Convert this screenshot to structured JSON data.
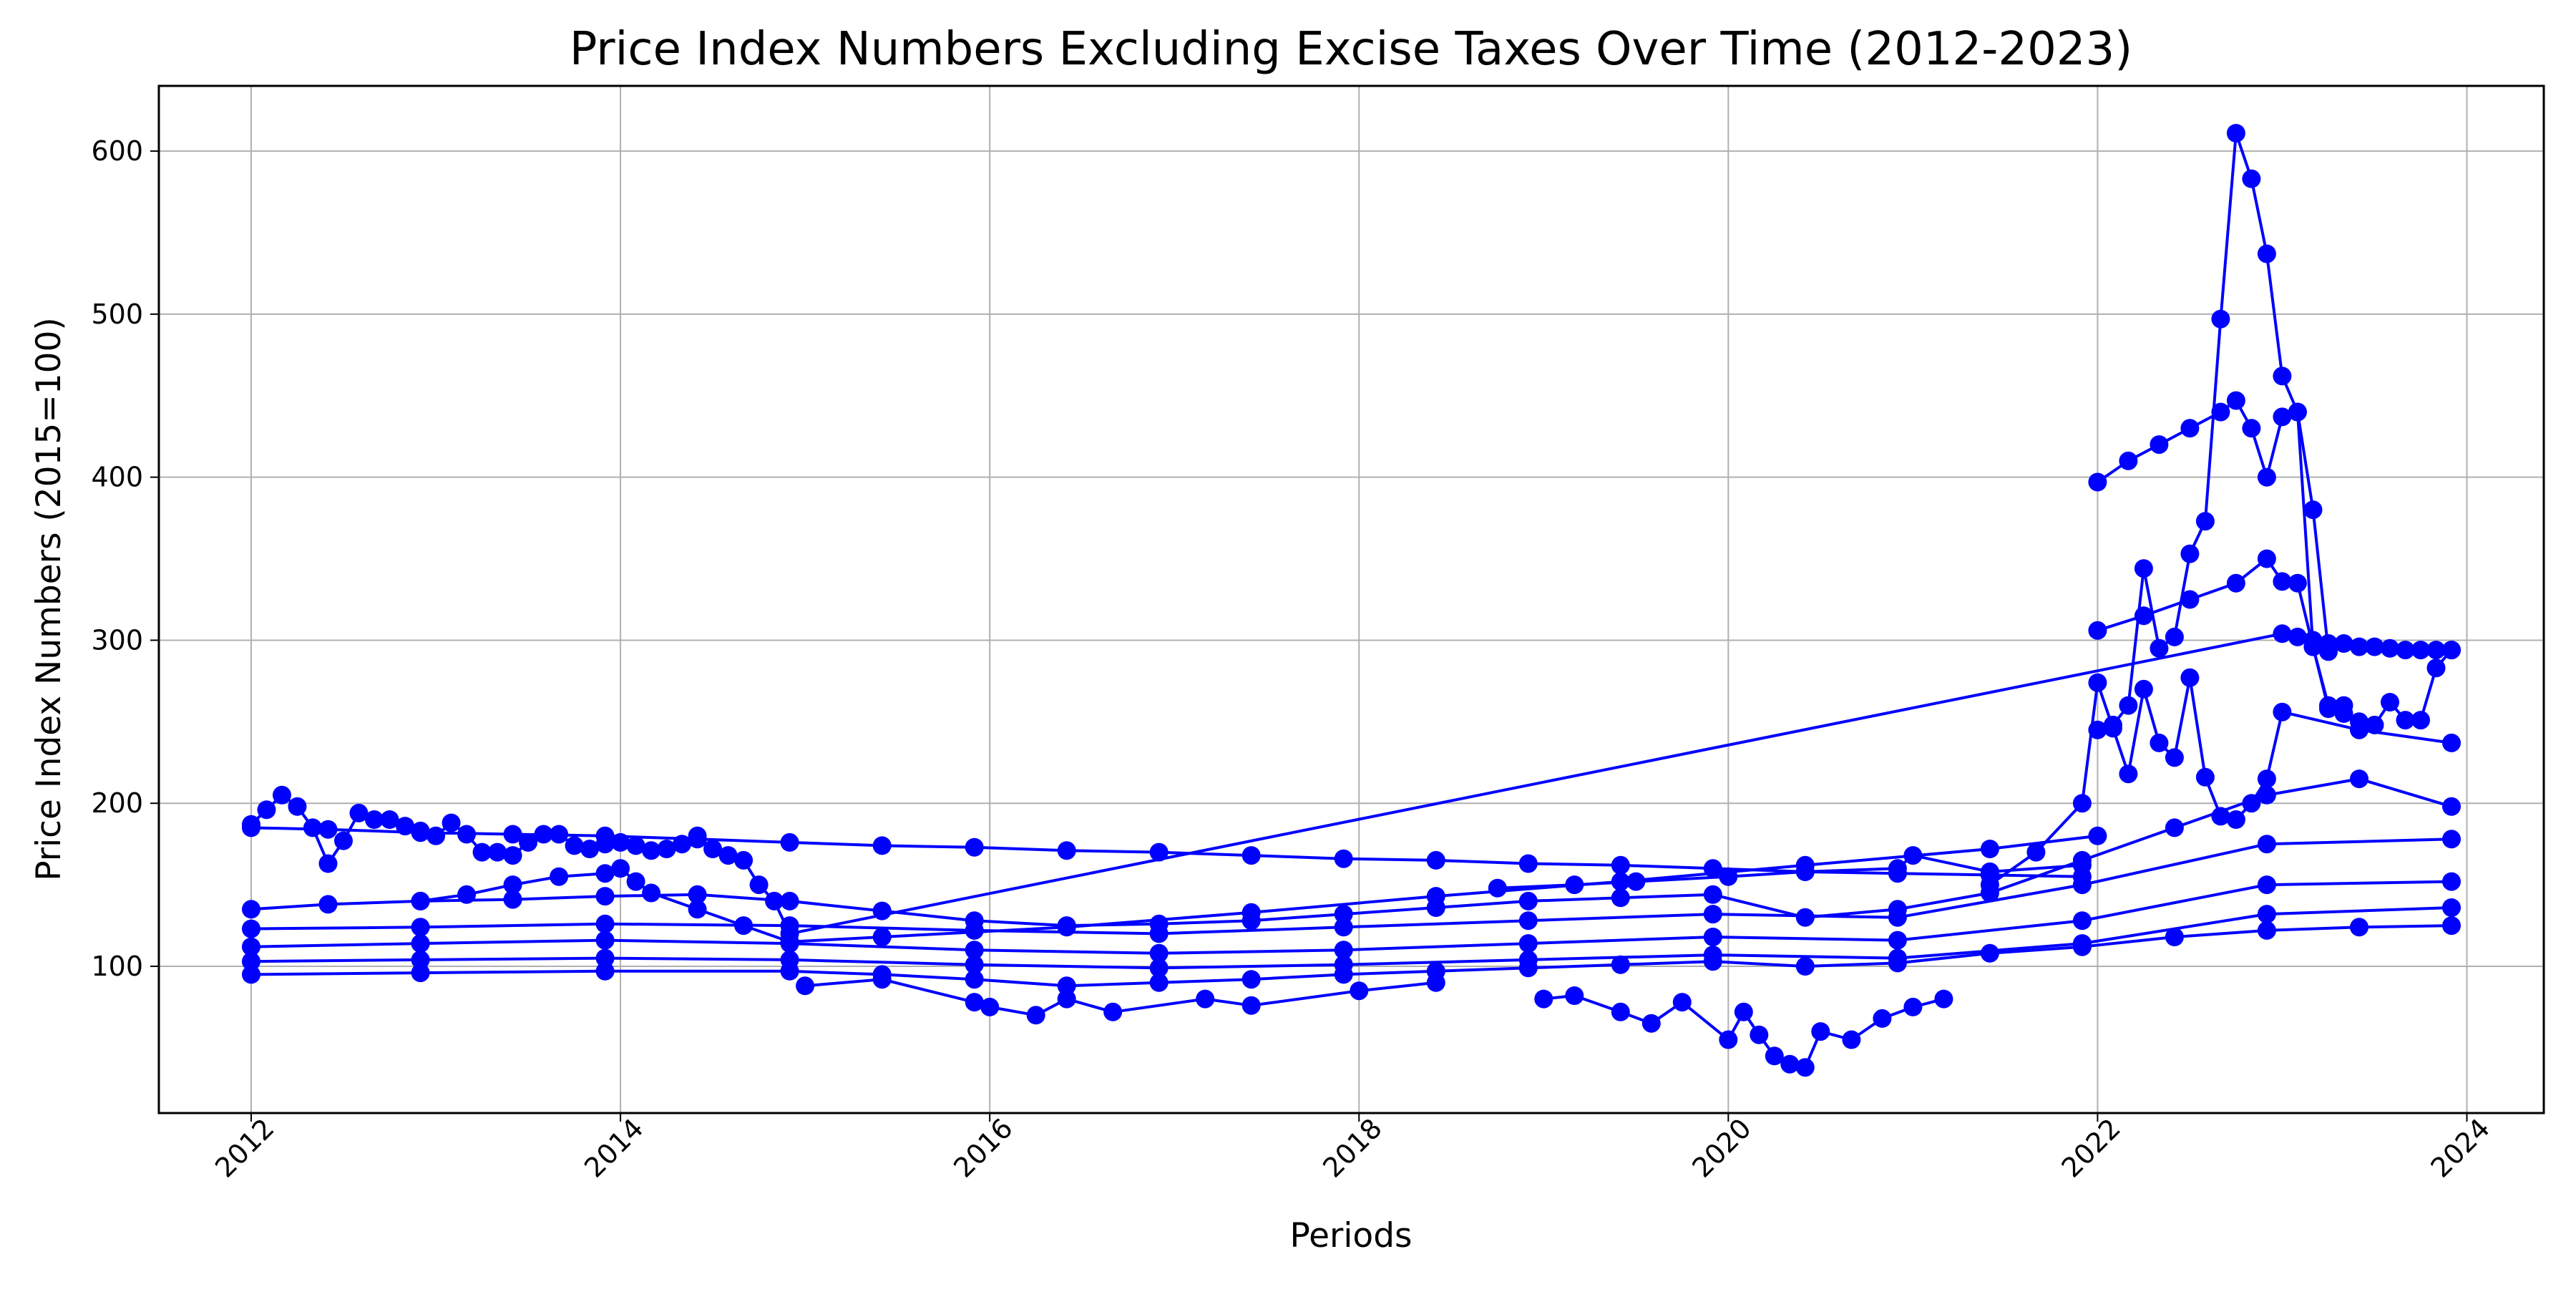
{
  "chart_data": {
    "type": "line",
    "title": "Price Index Numbers Excluding Excise Taxes Over Time (2012-2023)",
    "xlabel": "Periods",
    "ylabel": "Price Index Numbers (2015=100)",
    "x_ticks": [
      "2012",
      "2014",
      "2016",
      "2018",
      "2020",
      "2022",
      "2024"
    ],
    "y_ticks": [
      "100",
      "200",
      "300",
      "400",
      "500",
      "600"
    ],
    "xlim": [
      "2011-07",
      "2024-06"
    ],
    "ylim": [
      10,
      640
    ],
    "grid": true,
    "line_color": "#0000ff",
    "marker": "circle",
    "series": [
      {
        "x": [
          "2012-01",
          "2012-02",
          "2012-03",
          "2012-04",
          "2012-05",
          "2012-06",
          "2012-07",
          "2012-08",
          "2012-09",
          "2012-10",
          "2012-11",
          "2012-12",
          "2013-01",
          "2013-02",
          "2013-03",
          "2013-04",
          "2013-05",
          "2013-06",
          "2013-07",
          "2013-08",
          "2013-09",
          "2013-10",
          "2013-11",
          "2013-12",
          "2014-01",
          "2014-02",
          "2014-03",
          "2014-04",
          "2014-05",
          "2014-06",
          "2014-07",
          "2014-08",
          "2014-09",
          "2014-10",
          "2014-11",
          "2014-12",
          "2023-01",
          "2023-02",
          "2023-03",
          "2023-04",
          "2023-05",
          "2023-06",
          "2023-07",
          "2023-08",
          "2023-09",
          "2023-10",
          "2023-11",
          "2023-12"
        ],
        "y": [
          187,
          196,
          205,
          198,
          185,
          163,
          177,
          194,
          190,
          190,
          186,
          183,
          180,
          188,
          181,
          170,
          170,
          168,
          176,
          181,
          181,
          174,
          172,
          175,
          176,
          174,
          171,
          172,
          175,
          180,
          172,
          168,
          165,
          150,
          140,
          120,
          304,
          302,
          300,
          298,
          298,
          296,
          296,
          295,
          294,
          294,
          294,
          294
        ]
      },
      {
        "x": [
          "2012-01",
          "2012-06",
          "2012-12",
          "2013-06",
          "2013-12",
          "2014-06",
          "2014-12",
          "2015-06",
          "2015-12",
          "2016-06",
          "2016-12",
          "2017-06",
          "2017-12",
          "2018-06",
          "2018-12",
          "2019-06",
          "2019-12",
          "2020-06",
          "2020-12",
          "2021-06",
          "2021-12"
        ],
        "y": [
          185,
          184,
          182,
          181,
          180,
          178,
          176,
          174,
          173,
          171,
          170,
          168,
          166,
          165,
          163,
          162,
          160,
          158,
          157,
          156,
          155
        ]
      },
      {
        "x": [
          "2012-12",
          "2013-03",
          "2013-06",
          "2013-09",
          "2013-12",
          "2014-01",
          "2014-02",
          "2014-03",
          "2014-06",
          "2014-09",
          "2014-12",
          "2015-06",
          "2016-06",
          "2017-06",
          "2018-06",
          "2019-06",
          "2020-06",
          "2021-06",
          "2022-01"
        ],
        "y": [
          140,
          144,
          150,
          155,
          157,
          160,
          152,
          145,
          135,
          125,
          115,
          118,
          124,
          133,
          143,
          152,
          162,
          172,
          180
        ]
      },
      {
        "x": [
          "2022-01",
          "2022-03",
          "2022-05",
          "2022-07",
          "2022-09",
          "2022-10",
          "2022-11",
          "2022-12",
          "2023-01",
          "2023-02",
          "2023-03",
          "2023-04"
        ],
        "y": [
          397,
          410,
          420,
          430,
          440,
          447,
          430,
          400,
          437,
          440,
          380,
          293
        ]
      },
      {
        "x": [
          "2022-01",
          "2022-02",
          "2022-03",
          "2022-04",
          "2022-05",
          "2022-06",
          "2022-07",
          "2022-08",
          "2022-09",
          "2022-10",
          "2022-11",
          "2022-12",
          "2023-01",
          "2023-02",
          "2023-03",
          "2023-04",
          "2023-05"
        ],
        "y": [
          245,
          248,
          260,
          344,
          295,
          302,
          353,
          373,
          497,
          611,
          583,
          537,
          462,
          440,
          296,
          258,
          260
        ]
      },
      {
        "x": [
          "2022-01",
          "2022-04",
          "2022-07",
          "2022-10",
          "2022-12",
          "2023-01",
          "2023-02",
          "2023-03",
          "2023-04",
          "2023-05",
          "2023-06",
          "2023-07",
          "2023-08",
          "2023-09",
          "2023-10",
          "2023-11",
          "2023-12"
        ],
        "y": [
          306,
          315,
          325,
          335,
          350,
          336,
          335,
          296,
          260,
          255,
          250,
          248,
          262,
          251,
          251,
          283,
          294
        ]
      },
      {
        "x": [
          "2021-06",
          "2021-09",
          "2021-12",
          "2022-01",
          "2022-02",
          "2022-03",
          "2022-04",
          "2022-05",
          "2022-06",
          "2022-07",
          "2022-08",
          "2022-09",
          "2022-10",
          "2022-11",
          "2022-12",
          "2023-01",
          "2023-06",
          "2023-12"
        ],
        "y": [
          150,
          170,
          200,
          274,
          246,
          218,
          270,
          237,
          228,
          277,
          216,
          192,
          190,
          200,
          215,
          256,
          245,
          237
        ]
      },
      {
        "x": [
          "2012-01",
          "2012-06",
          "2012-12",
          "2013-06",
          "2013-12",
          "2014-06",
          "2014-12",
          "2015-06",
          "2015-12",
          "2016-06",
          "2016-12",
          "2017-06",
          "2017-12",
          "2018-06",
          "2018-12",
          "2019-06",
          "2019-12",
          "2020-06",
          "2020-12",
          "2021-06",
          "2021-12",
          "2022-06",
          "2022-12",
          "2023-06",
          "2023-12"
        ],
        "y": [
          135,
          138,
          140,
          141,
          143,
          144,
          140,
          134,
          128,
          125,
          126,
          128,
          132,
          136,
          140,
          142,
          144,
          130,
          135,
          145,
          165,
          185,
          205,
          215,
          198
        ]
      },
      {
        "x": [
          "2012-01",
          "2012-12",
          "2013-12",
          "2014-12",
          "2015-12",
          "2016-12",
          "2017-12",
          "2018-12",
          "2019-12",
          "2020-12",
          "2021-12",
          "2022-12",
          "2023-12"
        ],
        "y": [
          123,
          124,
          126,
          125,
          122,
          120,
          124,
          128,
          132,
          130,
          150,
          175,
          178
        ]
      },
      {
        "x": [
          "2012-01",
          "2012-12",
          "2013-12",
          "2014-12",
          "2015-12",
          "2016-12",
          "2017-12",
          "2018-12",
          "2019-12",
          "2020-12",
          "2021-12",
          "2022-12",
          "2023-12"
        ],
        "y": [
          112,
          114,
          116,
          114,
          110,
          108,
          110,
          114,
          118,
          116,
          128,
          150,
          152
        ]
      },
      {
        "x": [
          "2012-01",
          "2012-12",
          "2013-12",
          "2014-12",
          "2015-12",
          "2016-12",
          "2017-12",
          "2018-12",
          "2019-12",
          "2020-12",
          "2021-12",
          "2022-12",
          "2023-12"
        ],
        "y": [
          103,
          104,
          105,
          104,
          101,
          99,
          101,
          104,
          107,
          105,
          114,
          132,
          136
        ]
      },
      {
        "x": [
          "2012-01",
          "2012-12",
          "2013-12",
          "2014-12",
          "2015-06",
          "2015-12",
          "2016-06",
          "2016-12",
          "2017-06",
          "2017-12",
          "2018-06",
          "2018-12",
          "2019-06",
          "2019-12",
          "2020-06",
          "2020-12",
          "2021-06",
          "2021-12",
          "2022-06",
          "2022-12",
          "2023-06",
          "2023-12"
        ],
        "y": [
          95,
          96,
          97,
          97,
          95,
          92,
          88,
          90,
          92,
          95,
          97,
          99,
          101,
          103,
          100,
          102,
          108,
          112,
          118,
          122,
          124,
          125
        ]
      },
      {
        "x": [
          "2015-01",
          "2015-06",
          "2015-12",
          "2016-01",
          "2016-04",
          "2016-06",
          "2016-09",
          "2017-03",
          "2017-06",
          "2018-01",
          "2018-06"
        ],
        "y": [
          88,
          92,
          78,
          75,
          70,
          80,
          72,
          80,
          76,
          85,
          90
        ]
      },
      {
        "x": [
          "2019-01",
          "2019-03",
          "2019-06",
          "2019-08",
          "2019-10",
          "2020-01",
          "2020-02",
          "2020-03",
          "2020-04",
          "2020-05",
          "2020-06",
          "2020-07",
          "2020-09",
          "2020-11",
          "2021-01",
          "2021-03"
        ],
        "y": [
          80,
          82,
          72,
          65,
          78,
          55,
          72,
          58,
          45,
          40,
          38,
          60,
          55,
          68,
          75,
          80
        ]
      },
      {
        "x": [
          "2018-10",
          "2019-03",
          "2019-07",
          "2020-01",
          "2020-06",
          "2020-12",
          "2021-01",
          "2021-06",
          "2021-12"
        ],
        "y": [
          148,
          150,
          152,
          155,
          158,
          160,
          168,
          158,
          162
        ]
      }
    ]
  }
}
